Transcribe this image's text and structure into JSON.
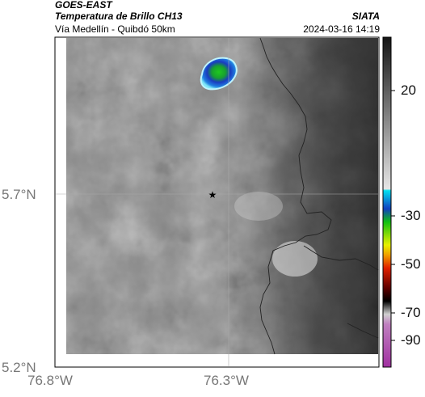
{
  "header": {
    "satellite": "GOES-EAST",
    "product": "Temperatura de Brillo CH13",
    "region": "Vía Medellín - Quibdó 50km",
    "organization": "SIATA",
    "datetime": "2024-03-16 14:19"
  },
  "map": {
    "lat_labels": [
      "5.7°N",
      "5.2°N"
    ],
    "lon_labels": [
      "76.8°W",
      "76.3°W"
    ],
    "marker": "star"
  },
  "colorbar": {
    "tick_labels": [
      "20",
      "-30",
      "-50",
      "-70",
      "-90"
    ],
    "colors": {
      "warm_top": "#1a1a1a",
      "warm_bottom": "#e0e0e0",
      "cyan": "#00c8e0",
      "blue": "#1a1aa0",
      "green": "#20c020",
      "yellow": "#f0f000",
      "red": "#e02000",
      "black": "#000000",
      "magenta": "#b040b0"
    }
  }
}
